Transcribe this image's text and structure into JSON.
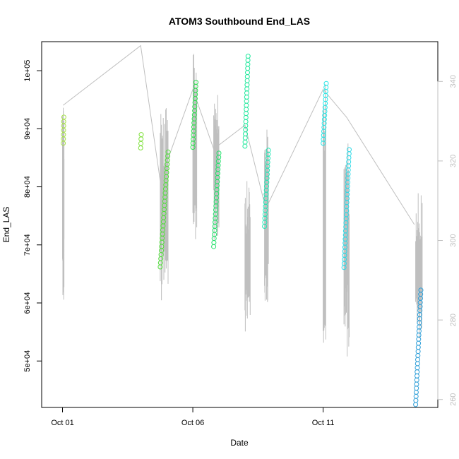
{
  "chart_data": {
    "type": "scatter",
    "title": "ATOM3 Southbound End_LAS",
    "xlabel": "Date",
    "ylabel": "End_LAS",
    "x_unit": "days since Oct 01",
    "xlim": [
      -0.8,
      14.4
    ],
    "ylim": [
      42000,
      105000
    ],
    "y2lim": [
      258,
      350
    ],
    "x_ticks": [
      {
        "value": 0,
        "label": "Oct 01"
      },
      {
        "value": 5,
        "label": "Oct 06"
      },
      {
        "value": 10,
        "label": "Oct 11"
      }
    ],
    "y_ticks": [
      {
        "value": 50000,
        "label": "5e+04"
      },
      {
        "value": 60000,
        "label": "6e+04"
      },
      {
        "value": 70000,
        "label": "7e+04"
      },
      {
        "value": 80000,
        "label": "8e+04"
      },
      {
        "value": 90000,
        "label": "9e+04"
      },
      {
        "value": 100000,
        "label": "1e+05"
      }
    ],
    "y2_ticks": [
      {
        "value": 260,
        "label": "260"
      },
      {
        "value": 280,
        "label": "280"
      },
      {
        "value": 300,
        "label": "300"
      },
      {
        "value": 320,
        "label": "320"
      },
      {
        "value": 340,
        "label": "340"
      }
    ],
    "grid": false,
    "scatter_series": [
      {
        "color": "#a6e24a",
        "x_start": 0.03,
        "x_end": 0.05,
        "y_start": 87500,
        "y_end": 92000
      },
      {
        "color": "#7ee03a",
        "x_start": 3.0,
        "x_end": 3.02,
        "y_start": 86700,
        "y_end": 89000
      },
      {
        "color": "#52dd3c",
        "x_start": 3.75,
        "x_end": 4.05,
        "y_start": 66200,
        "y_end": 86000
      },
      {
        "color": "#2ee050",
        "x_start": 5.0,
        "x_end": 5.12,
        "y_start": 86800,
        "y_end": 98000
      },
      {
        "color": "#22e06a",
        "x_start": 5.8,
        "x_end": 6.0,
        "y_start": 69700,
        "y_end": 85800
      },
      {
        "color": "#20e89c",
        "x_start": 7.0,
        "x_end": 7.12,
        "y_start": 87000,
        "y_end": 102500
      },
      {
        "color": "#20e6b4",
        "x_start": 7.75,
        "x_end": 7.9,
        "y_start": 73200,
        "y_end": 86300
      },
      {
        "color": "#26e6e6",
        "x_start": 10.0,
        "x_end": 10.12,
        "y_start": 87500,
        "y_end": 97800
      },
      {
        "color": "#2ad9e6",
        "x_start": 10.8,
        "x_end": 11.0,
        "y_start": 66100,
        "y_end": 86400
      },
      {
        "color": "#2c9ed8",
        "x_start": 13.55,
        "x_end": 13.75,
        "y_start": 42500,
        "y_end": 62200
      }
    ],
    "secondary_line": {
      "color": "#bfbfbf",
      "x": [
        0.02,
        3.0,
        3.75,
        5.0,
        5.8,
        7.0,
        7.8,
        10.0,
        10.9,
        13.5
      ],
      "y": [
        334,
        349,
        315,
        338,
        323,
        329,
        308,
        338,
        331,
        304
      ],
      "spike_ranges": [
        {
          "x_start": 0.0,
          "x_end": 0.06,
          "y_min": 283,
          "y_max": 337
        },
        {
          "x_start": 3.75,
          "x_end": 4.05,
          "y_min": 282,
          "y_max": 335
        },
        {
          "x_start": 5.0,
          "x_end": 5.15,
          "y_min": 300,
          "y_max": 347
        },
        {
          "x_start": 5.8,
          "x_end": 6.0,
          "y_min": 300,
          "y_max": 340
        },
        {
          "x_start": 7.0,
          "x_end": 7.2,
          "y_min": 277,
          "y_max": 315
        },
        {
          "x_start": 7.75,
          "x_end": 7.9,
          "y_min": 283,
          "y_max": 328
        },
        {
          "x_start": 10.0,
          "x_end": 10.1,
          "y_min": 272,
          "y_max": 340
        },
        {
          "x_start": 10.8,
          "x_end": 11.0,
          "y_min": 270,
          "y_max": 325
        },
        {
          "x_start": 13.55,
          "x_end": 13.8,
          "y_min": 275,
          "y_max": 313
        }
      ]
    }
  }
}
